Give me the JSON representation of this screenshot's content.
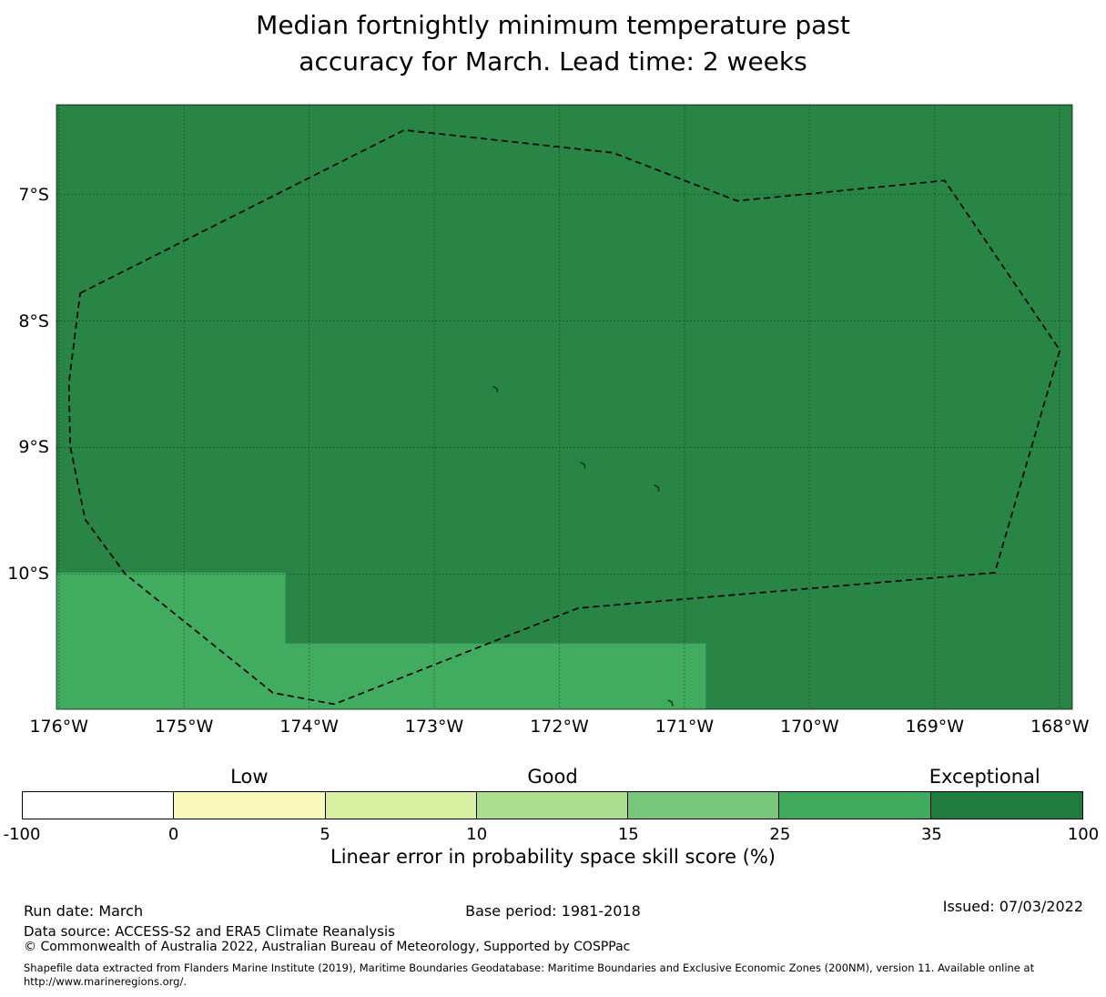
{
  "title": {
    "line1": "Median fortnightly minimum temperature past",
    "line2": "accuracy for March. Lead time: 2 weeks"
  },
  "chart_data": {
    "type": "heatmap",
    "title": "Median fortnightly minimum temperature past accuracy for March. Lead time: 2 weeks",
    "xlabel_ticks": [
      "176°W",
      "175°W",
      "174°W",
      "173°W",
      "172°W",
      "171°W",
      "170°W",
      "169°W",
      "168°W"
    ],
    "ylabel_ticks": [
      "7°S",
      "8°S",
      "9°S",
      "10°S"
    ],
    "lon_ticks_deg_w": [
      176,
      175,
      174,
      173,
      172,
      171,
      170,
      169,
      168
    ],
    "lat_ticks_deg_s": [
      7,
      8,
      9,
      10
    ],
    "lon_extent_deg_w": [
      176.02,
      167.9
    ],
    "lat_extent_deg_s": [
      6.29,
      11.07
    ],
    "base_region_skill_bin": "35-100",
    "highlight_skill_bin": "25-35",
    "regions": [
      {
        "name": "southwest-block",
        "skill_bin": "25-35",
        "lon_w": [
          176.02,
          174.19
        ],
        "lat_s": [
          9.99,
          11.07
        ]
      },
      {
        "name": "south-central-strip",
        "skill_bin": "25-35",
        "lon_w": [
          174.19,
          170.83
        ],
        "lat_s": [
          10.55,
          11.07
        ]
      }
    ],
    "eez_boundary_lon_lat_w_s": [
      [
        175.83,
        7.78
      ],
      [
        173.24,
        6.49
      ],
      [
        171.57,
        6.67
      ],
      [
        170.58,
        7.05
      ],
      [
        168.92,
        6.89
      ],
      [
        168.0,
        8.23
      ],
      [
        168.52,
        9.99
      ],
      [
        171.85,
        10.27
      ],
      [
        173.8,
        11.03
      ],
      [
        174.29,
        10.94
      ],
      [
        175.47,
        10.0
      ],
      [
        175.79,
        9.57
      ],
      [
        175.91,
        8.99
      ],
      [
        175.92,
        8.49
      ]
    ],
    "islands_lon_lat_w_s": [
      [
        172.51,
        8.54
      ],
      [
        171.81,
        9.14
      ],
      [
        171.22,
        9.32
      ],
      [
        171.11,
        11.02
      ]
    ],
    "colorbar": {
      "boundaries": [
        -100,
        0,
        5,
        10,
        15,
        25,
        35,
        100
      ],
      "tick_labels": [
        "-100",
        "0",
        "5",
        "10",
        "15",
        "25",
        "35",
        "100"
      ],
      "colors": [
        "#ffffff",
        "#f8f8b8",
        "#d9f0a3",
        "#addd8e",
        "#78c679",
        "#41ab5d",
        "#1d7c3e"
      ],
      "category_labels": [
        {
          "label": "Low",
          "position_segment": 1.5
        },
        {
          "label": "Good",
          "position_segment": 3.5
        },
        {
          "label": "Exceptional",
          "position_segment": 6.35
        }
      ],
      "axis_label": "Linear error in probability space skill score (%)"
    },
    "colors": {
      "map_base": "#288546",
      "map_highlight": "#41ac60",
      "boundary": "#000000",
      "gridline": "rgba(0,0,0,0.4)"
    }
  },
  "footer": {
    "run_date": "Run date: March",
    "base_period": "Base period: 1981-2018",
    "issued": "Issued: 07/03/2022",
    "data_source": "Data source: ACCESS-S2 and ERA5 Climate Reanalysis",
    "copyright": "© Commonwealth of Australia 2022, Australian Bureau of Meteorology, Supported by COSPPac",
    "shapefile_line1": "Shapefile data extracted from Flanders Marine Institute (2019), Maritime Boundaries Geodatabase: Maritime Boundaries and Exclusive Economic Zones (200NM), version 11. Available online at",
    "shapefile_line2": "http://www.marineregions.org/."
  }
}
